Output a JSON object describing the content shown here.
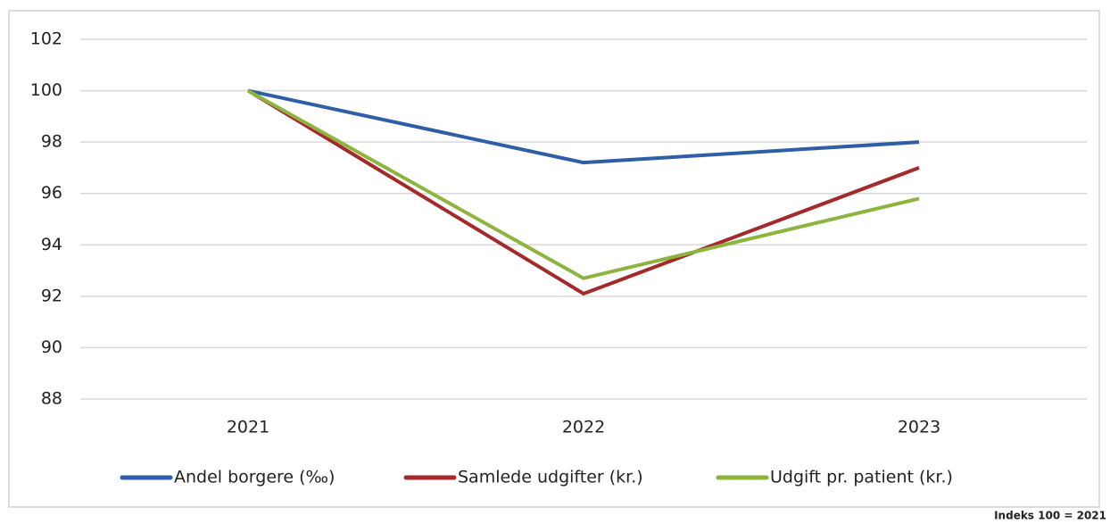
{
  "chart_data": {
    "type": "line",
    "categories": [
      "2021",
      "2022",
      "2023"
    ],
    "series": [
      {
        "name": "Andel borgere (‰)",
        "color": "#2f5ea6",
        "values": [
          100,
          97.2,
          98.0
        ]
      },
      {
        "name": "Samlede udgifter (kr.)",
        "color": "#a3292b",
        "values": [
          100,
          92.1,
          97.0
        ]
      },
      {
        "name": "Udgift pr. patient (kr.)",
        "color": "#8db43e",
        "values": [
          100,
          92.7,
          95.8
        ]
      }
    ],
    "ylim": [
      88,
      102
    ],
    "yticks": [
      88,
      90,
      92,
      94,
      96,
      98,
      100,
      102
    ],
    "grid": true,
    "legend": "bottom",
    "note": "Indeks 100 = 2021"
  }
}
